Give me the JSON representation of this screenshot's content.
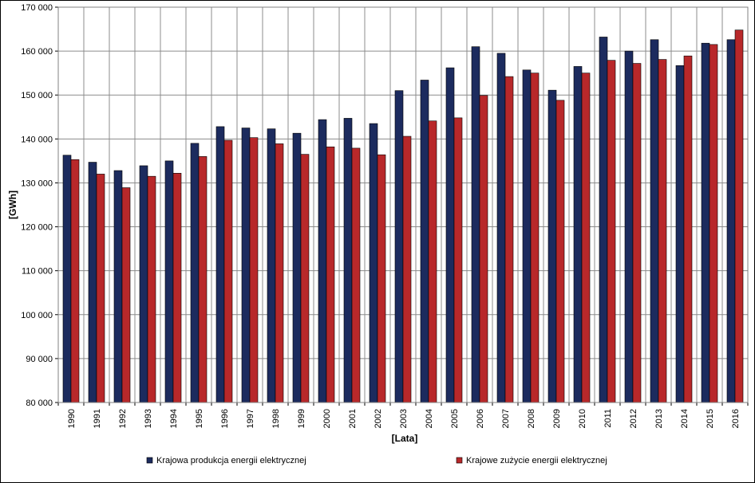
{
  "chart_data": {
    "type": "bar",
    "xlabel": "[Lata]",
    "ylabel": "[GWh]",
    "ylim": [
      80000,
      170000
    ],
    "yticks": [
      80000,
      90000,
      100000,
      110000,
      120000,
      130000,
      140000,
      150000,
      160000,
      170000
    ],
    "ytick_labels": [
      "80 000",
      "90 000",
      "100 000",
      "110 000",
      "120 000",
      "130 000",
      "140 000",
      "150 000",
      "160 000",
      "170 000"
    ],
    "grid": true,
    "legend_position": "bottom",
    "categories": [
      "1990",
      "1991",
      "1992",
      "1993",
      "1994",
      "1995",
      "1996",
      "1997",
      "1998",
      "1999",
      "2000",
      "2001",
      "2002",
      "2003",
      "2004",
      "2005",
      "2006",
      "2007",
      "2008",
      "2009",
      "2010",
      "2011",
      "2012",
      "2013",
      "2014",
      "2015",
      "2016"
    ],
    "series": [
      {
        "name": "Krajowa produkcja energii elektrycznej",
        "color": "#1c2b5e",
        "values": [
          136300,
          134700,
          132800,
          133900,
          135000,
          139000,
          142800,
          142500,
          142300,
          141300,
          144400,
          144700,
          143500,
          151000,
          153400,
          156200,
          161000,
          159500,
          155700,
          151100,
          156500,
          163200,
          160000,
          162600,
          156700,
          161800,
          162600
        ]
      },
      {
        "name": "Krajowe zużycie energii elektrycznej",
        "color": "#b8282a",
        "values": [
          135300,
          132000,
          128900,
          131500,
          132200,
          136000,
          139700,
          140300,
          138900,
          136500,
          138200,
          137900,
          136400,
          140600,
          144100,
          144800,
          149900,
          154200,
          155000,
          148800,
          155000,
          157900,
          157200,
          158100,
          158900,
          161500,
          164800
        ]
      }
    ]
  }
}
